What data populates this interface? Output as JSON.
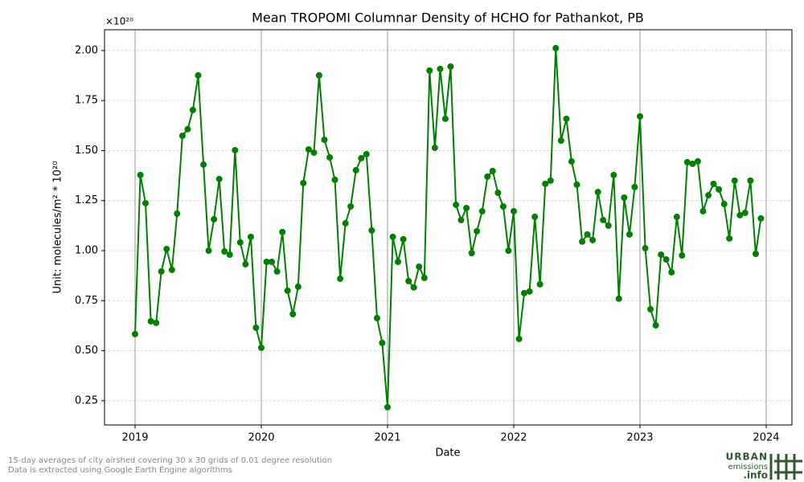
{
  "chart_data": {
    "type": "line",
    "title": "Mean TROPOMI Columnar Density of HCHO for Pathankot, PB",
    "x_label": "Date",
    "y_label": "Unit: molecules/m² * 10²⁰",
    "y_offset_label": "×10²⁰",
    "footnotes": [
      "15-day averages of city airshed covering 30 x 30 grids of 0.01 degree resolution",
      "Data is extracted using Google Earth Engine algorithms"
    ],
    "logo": [
      "URBAN",
      "emissions",
      ".info"
    ],
    "grid": true,
    "xlim": [
      2018.758,
      2024.204
    ],
    "xticks": [
      2019,
      2020,
      2021,
      2022,
      2023,
      2024
    ],
    "ylim": [
      0.129,
      2.104
    ],
    "yticks": [
      {
        "value": 0.25,
        "label": "0.25"
      },
      {
        "value": 0.5,
        "label": "0.50"
      },
      {
        "value": 0.75,
        "label": "0.75"
      },
      {
        "value": 1,
        "label": "1.00"
      },
      {
        "value": 1.25,
        "label": "1.25"
      },
      {
        "value": 1.5,
        "label": "1.50"
      },
      {
        "value": 1.75,
        "label": "1.75"
      },
      {
        "value": 2,
        "label": "2.00"
      }
    ],
    "x": [
      2019,
      2019.042,
      2019.083,
      2019.125,
      2019.167,
      2019.208,
      2019.25,
      2019.292,
      2019.333,
      2019.375,
      2019.417,
      2019.458,
      2019.5,
      2019.542,
      2019.583,
      2019.625,
      2019.667,
      2019.708,
      2019.75,
      2019.792,
      2019.833,
      2019.875,
      2019.917,
      2019.958,
      2020,
      2020.042,
      2020.083,
      2020.125,
      2020.167,
      2020.208,
      2020.25,
      2020.292,
      2020.333,
      2020.375,
      2020.417,
      2020.458,
      2020.5,
      2020.542,
      2020.583,
      2020.625,
      2020.667,
      2020.708,
      2020.75,
      2020.792,
      2020.833,
      2020.875,
      2020.917,
      2020.958,
      2021,
      2021.042,
      2021.083,
      2021.125,
      2021.167,
      2021.208,
      2021.25,
      2021.292,
      2021.333,
      2021.375,
      2021.417,
      2021.458,
      2021.5,
      2021.542,
      2021.583,
      2021.625,
      2021.667,
      2021.708,
      2021.75,
      2021.792,
      2021.833,
      2021.875,
      2021.917,
      2021.958,
      2022,
      2022.042,
      2022.083,
      2022.125,
      2022.167,
      2022.208,
      2022.25,
      2022.292,
      2022.333,
      2022.375,
      2022.417,
      2022.458,
      2022.5,
      2022.542,
      2022.583,
      2022.625,
      2022.667,
      2022.708,
      2022.75,
      2022.792,
      2022.833,
      2022.875,
      2022.917,
      2022.958,
      2023,
      2023.042,
      2023.083,
      2023.125,
      2023.167,
      2023.208,
      2023.25,
      2023.292,
      2023.333,
      2023.375,
      2023.417,
      2023.458,
      2023.5,
      2023.542,
      2023.583,
      2023.625,
      2023.667,
      2023.708,
      2023.75,
      2023.792,
      2023.833,
      2023.875,
      2023.917,
      2023.958
    ],
    "series": [
      {
        "name": "HCHO",
        "color": "#008000",
        "values": [
          0.583,
          1.378,
          1.237,
          0.647,
          0.639,
          0.896,
          1.008,
          0.904,
          1.185,
          1.574,
          1.607,
          1.703,
          1.876,
          1.43,
          1.0,
          1.157,
          1.358,
          0.996,
          0.98,
          1.502,
          1.041,
          0.932,
          1.069,
          0.615,
          0.515,
          0.944,
          0.944,
          0.896,
          1.093,
          0.8,
          0.683,
          0.82,
          1.338,
          1.506,
          1.49,
          1.876,
          1.554,
          1.466,
          1.354,
          0.86,
          1.137,
          1.221,
          1.402,
          1.462,
          1.482,
          1.101,
          0.663,
          0.539,
          0.218,
          1.069,
          0.944,
          1.057,
          0.848,
          0.816,
          0.92,
          0.864,
          1.9,
          1.514,
          1.908,
          1.659,
          1.92,
          1.229,
          1.153,
          1.213,
          0.988,
          1.097,
          1.197,
          1.37,
          1.398,
          1.289,
          1.221,
          1.0,
          1.197,
          0.559,
          0.788,
          0.796,
          1.169,
          0.832,
          1.334,
          1.35,
          2.012,
          1.55,
          1.659,
          1.446,
          1.33,
          1.045,
          1.081,
          1.053,
          1.293,
          1.153,
          1.125,
          1.378,
          0.76,
          1.265,
          1.081,
          1.318,
          1.671,
          1.012,
          0.707,
          0.627,
          0.98,
          0.956,
          0.892,
          1.169,
          0.976,
          1.442,
          1.434,
          1.446,
          1.197,
          1.277,
          1.334,
          1.306,
          1.233,
          1.061,
          1.35,
          1.177,
          1.189,
          1.35,
          0.984,
          1.161
        ]
      }
    ]
  }
}
